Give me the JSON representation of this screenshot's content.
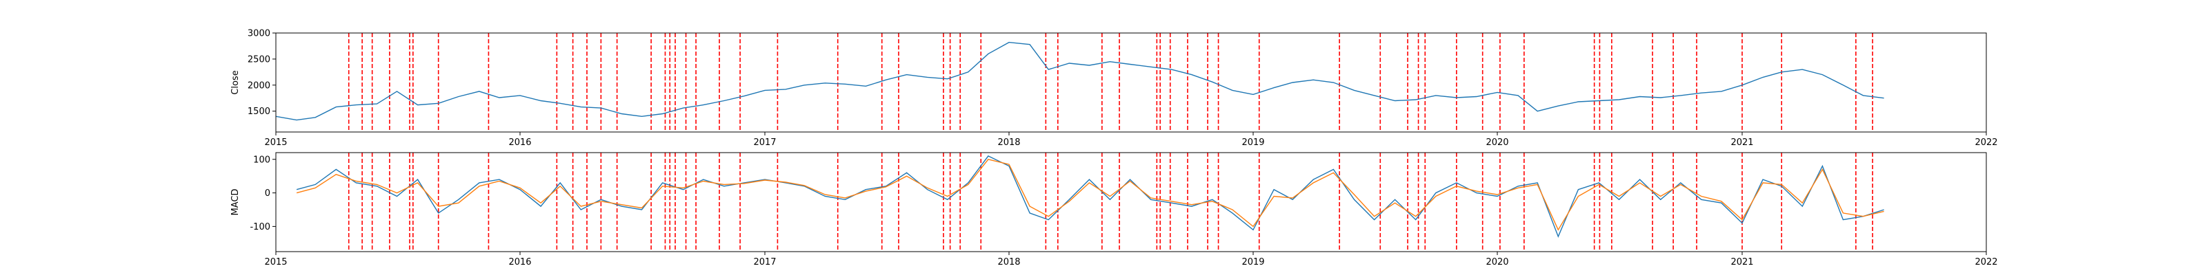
{
  "chart_data": [
    {
      "type": "line",
      "ylabel": "Close",
      "xlabel": "",
      "title": "",
      "xlim": [
        "2015-01-01",
        "2022-01-01"
      ],
      "ylim": [
        1100,
        3000
      ],
      "x_ticks": [
        "2015",
        "2016",
        "2017",
        "2018",
        "2019",
        "2020",
        "2021",
        "2022"
      ],
      "y_ticks": [
        1500,
        2000,
        2500,
        3000
      ],
      "grid": false,
      "series": [
        {
          "color": "#1f77b4",
          "x": [
            "2015-01-01",
            "2015-02-01",
            "2015-03-01",
            "2015-04-01",
            "2015-05-01",
            "2015-06-01",
            "2015-07-01",
            "2015-08-01",
            "2015-09-01",
            "2015-10-01",
            "2015-11-01",
            "2015-12-01",
            "2016-01-01",
            "2016-02-01",
            "2016-03-01",
            "2016-04-01",
            "2016-05-01",
            "2016-06-01",
            "2016-07-01",
            "2016-08-01",
            "2016-09-01",
            "2016-10-01",
            "2016-11-01",
            "2016-12-01",
            "2017-01-01",
            "2017-02-01",
            "2017-03-01",
            "2017-04-01",
            "2017-05-01",
            "2017-06-01",
            "2017-07-01",
            "2017-08-01",
            "2017-09-01",
            "2017-10-01",
            "2017-11-01",
            "2017-12-01",
            "2018-01-01",
            "2018-02-01",
            "2018-03-01",
            "2018-04-01",
            "2018-05-01",
            "2018-06-01",
            "2018-07-01",
            "2018-08-01",
            "2018-09-01",
            "2018-10-01",
            "2018-11-01",
            "2018-12-01",
            "2019-01-01",
            "2019-02-01",
            "2019-03-01",
            "2019-04-01",
            "2019-05-01",
            "2019-06-01",
            "2019-07-01",
            "2019-08-01",
            "2019-09-01",
            "2019-10-01",
            "2019-11-01",
            "2019-12-01",
            "2020-01-01",
            "2020-02-01",
            "2020-03-01",
            "2020-04-01",
            "2020-05-01",
            "2020-06-01",
            "2020-07-01",
            "2020-08-01",
            "2020-09-01",
            "2020-10-01",
            "2020-11-01",
            "2020-12-01",
            "2021-01-01",
            "2021-02-01",
            "2021-03-01",
            "2021-04-01",
            "2021-05-01",
            "2021-06-01",
            "2021-07-01",
            "2021-08-01"
          ],
          "values": [
            1400,
            1330,
            1380,
            1580,
            1620,
            1640,
            1880,
            1620,
            1650,
            1780,
            1880,
            1760,
            1800,
            1700,
            1650,
            1580,
            1560,
            1450,
            1400,
            1450,
            1560,
            1620,
            1700,
            1790,
            1900,
            1920,
            2000,
            2040,
            2020,
            1980,
            2100,
            2200,
            2150,
            2120,
            2250,
            2600,
            2820,
            2780,
            2300,
            2420,
            2380,
            2450,
            2400,
            2350,
            2300,
            2200,
            2060,
            1900,
            1820,
            1950,
            2050,
            2100,
            2050,
            1900,
            1800,
            1700,
            1720,
            1800,
            1760,
            1780,
            1860,
            1800,
            1500,
            1600,
            1680,
            1700,
            1720,
            1780,
            1760,
            1800,
            1850,
            1880,
            2000,
            2150,
            2250,
            2300,
            2200,
            2000,
            1800,
            1750
          ]
        }
      ]
    },
    {
      "type": "line",
      "ylabel": "MACD",
      "xlabel": "",
      "title": "",
      "xlim": [
        "2015-01-01",
        "2022-01-01"
      ],
      "ylim": [
        -175,
        120
      ],
      "x_ticks": [
        "2015",
        "2016",
        "2017",
        "2018",
        "2019",
        "2020",
        "2021",
        "2022"
      ],
      "y_ticks": [
        100,
        0,
        -100
      ],
      "grid": false,
      "series": [
        {
          "color": "#1f77b4",
          "x": [
            "2015-02-01",
            "2015-03-01",
            "2015-04-01",
            "2015-05-01",
            "2015-06-01",
            "2015-07-01",
            "2015-08-01",
            "2015-09-01",
            "2015-10-01",
            "2015-11-01",
            "2015-12-01",
            "2016-01-01",
            "2016-02-01",
            "2016-03-01",
            "2016-04-01",
            "2016-05-01",
            "2016-06-01",
            "2016-07-01",
            "2016-08-01",
            "2016-09-01",
            "2016-10-01",
            "2016-11-01",
            "2016-12-01",
            "2017-01-01",
            "2017-02-01",
            "2017-03-01",
            "2017-04-01",
            "2017-05-01",
            "2017-06-01",
            "2017-07-01",
            "2017-08-01",
            "2017-09-01",
            "2017-10-01",
            "2017-11-01",
            "2017-12-01",
            "2018-01-01",
            "2018-02-01",
            "2018-03-01",
            "2018-04-01",
            "2018-05-01",
            "2018-06-01",
            "2018-07-01",
            "2018-08-01",
            "2018-09-01",
            "2018-10-01",
            "2018-11-01",
            "2018-12-01",
            "2019-01-01",
            "2019-02-01",
            "2019-03-01",
            "2019-04-01",
            "2019-05-01",
            "2019-06-01",
            "2019-07-01",
            "2019-08-01",
            "2019-09-01",
            "2019-10-01",
            "2019-11-01",
            "2019-12-01",
            "2020-01-01",
            "2020-02-01",
            "2020-03-01",
            "2020-04-01",
            "2020-05-01",
            "2020-06-01",
            "2020-07-01",
            "2020-08-01",
            "2020-09-01",
            "2020-10-01",
            "2020-11-01",
            "2020-12-01",
            "2021-01-01",
            "2021-02-01",
            "2021-03-01",
            "2021-04-01",
            "2021-05-01",
            "2021-06-01",
            "2021-07-01",
            "2021-08-01"
          ],
          "values": [
            10,
            25,
            70,
            30,
            20,
            -10,
            40,
            -60,
            -20,
            30,
            40,
            10,
            -40,
            30,
            -50,
            -20,
            -40,
            -50,
            30,
            10,
            40,
            20,
            30,
            40,
            30,
            20,
            -10,
            -20,
            10,
            20,
            60,
            10,
            -20,
            30,
            110,
            80,
            -60,
            -80,
            -20,
            40,
            -20,
            40,
            -20,
            -30,
            -40,
            -20,
            -60,
            -110,
            10,
            -20,
            40,
            70,
            -20,
            -80,
            -20,
            -80,
            0,
            30,
            0,
            -10,
            20,
            30,
            -130,
            10,
            30,
            -20,
            40,
            -20,
            30,
            -20,
            -30,
            -90,
            40,
            20,
            -40,
            80,
            -80,
            -70,
            -50
          ]
        },
        {
          "color": "#ff7f0e",
          "x": [
            "2015-02-01",
            "2015-03-01",
            "2015-04-01",
            "2015-05-01",
            "2015-06-01",
            "2015-07-01",
            "2015-08-01",
            "2015-09-01",
            "2015-10-01",
            "2015-11-01",
            "2015-12-01",
            "2016-01-01",
            "2016-02-01",
            "2016-03-01",
            "2016-04-01",
            "2016-05-01",
            "2016-06-01",
            "2016-07-01",
            "2016-08-01",
            "2016-09-01",
            "2016-10-01",
            "2016-11-01",
            "2016-12-01",
            "2017-01-01",
            "2017-02-01",
            "2017-03-01",
            "2017-04-01",
            "2017-05-01",
            "2017-06-01",
            "2017-07-01",
            "2017-08-01",
            "2017-09-01",
            "2017-10-01",
            "2017-11-01",
            "2017-12-01",
            "2018-01-01",
            "2018-02-01",
            "2018-03-01",
            "2018-04-01",
            "2018-05-01",
            "2018-06-01",
            "2018-07-01",
            "2018-08-01",
            "2018-09-01",
            "2018-10-01",
            "2018-11-01",
            "2018-12-01",
            "2019-01-01",
            "2019-02-01",
            "2019-03-01",
            "2019-04-01",
            "2019-05-01",
            "2019-06-01",
            "2019-07-01",
            "2019-08-01",
            "2019-09-01",
            "2019-10-01",
            "2019-11-01",
            "2019-12-01",
            "2020-01-01",
            "2020-02-01",
            "2020-03-01",
            "2020-04-01",
            "2020-05-01",
            "2020-06-01",
            "2020-07-01",
            "2020-08-01",
            "2020-09-01",
            "2020-10-01",
            "2020-11-01",
            "2020-12-01",
            "2021-01-01",
            "2021-02-01",
            "2021-03-01",
            "2021-04-01",
            "2021-05-01",
            "2021-06-01",
            "2021-07-01",
            "2021-08-01"
          ],
          "values": [
            0,
            15,
            55,
            35,
            25,
            0,
            30,
            -40,
            -30,
            20,
            35,
            15,
            -30,
            20,
            -40,
            -25,
            -35,
            -45,
            20,
            15,
            35,
            25,
            28,
            38,
            32,
            22,
            -5,
            -15,
            5,
            18,
            50,
            15,
            -10,
            25,
            100,
            85,
            -40,
            -70,
            -25,
            30,
            -10,
            35,
            -15,
            -25,
            -35,
            -25,
            -50,
            -100,
            -10,
            -15,
            30,
            60,
            -5,
            -70,
            -30,
            -70,
            -10,
            20,
            5,
            -5,
            15,
            25,
            -110,
            -10,
            25,
            -10,
            30,
            -10,
            25,
            -10,
            -25,
            -80,
            30,
            25,
            -30,
            70,
            -60,
            -70,
            -55
          ]
        }
      ]
    }
  ],
  "event_dates": [
    "2015-04-20",
    "2015-05-10",
    "2015-05-25",
    "2015-06-20",
    "2015-07-20",
    "2015-07-25",
    "2015-09-01",
    "2015-11-15",
    "2016-02-25",
    "2016-03-20",
    "2016-04-10",
    "2016-05-01",
    "2016-05-25",
    "2016-07-15",
    "2016-08-05",
    "2016-08-12",
    "2016-08-20",
    "2016-09-05",
    "2016-09-20",
    "2016-10-25",
    "2016-11-25",
    "2017-01-20",
    "2017-04-20",
    "2017-06-25",
    "2017-07-20",
    "2017-09-25",
    "2017-10-05",
    "2017-10-20",
    "2017-11-20",
    "2018-02-25",
    "2018-03-15",
    "2018-05-20",
    "2018-06-15",
    "2018-08-10",
    "2018-08-15",
    "2018-08-30",
    "2018-09-25",
    "2018-10-25",
    "2018-11-10",
    "2019-01-10",
    "2019-05-10",
    "2019-07-10",
    "2019-08-20",
    "2019-09-05",
    "2019-09-15",
    "2019-11-01",
    "2019-12-10",
    "2020-01-05",
    "2020-02-10",
    "2020-05-25",
    "2020-06-02",
    "2020-06-20",
    "2020-08-20",
    "2020-09-20",
    "2020-10-25",
    "2021-01-01",
    "2021-03-01",
    "2021-06-20",
    "2021-07-15"
  ],
  "event_line_color": "#ff0000",
  "figure_background": "#ffffff"
}
